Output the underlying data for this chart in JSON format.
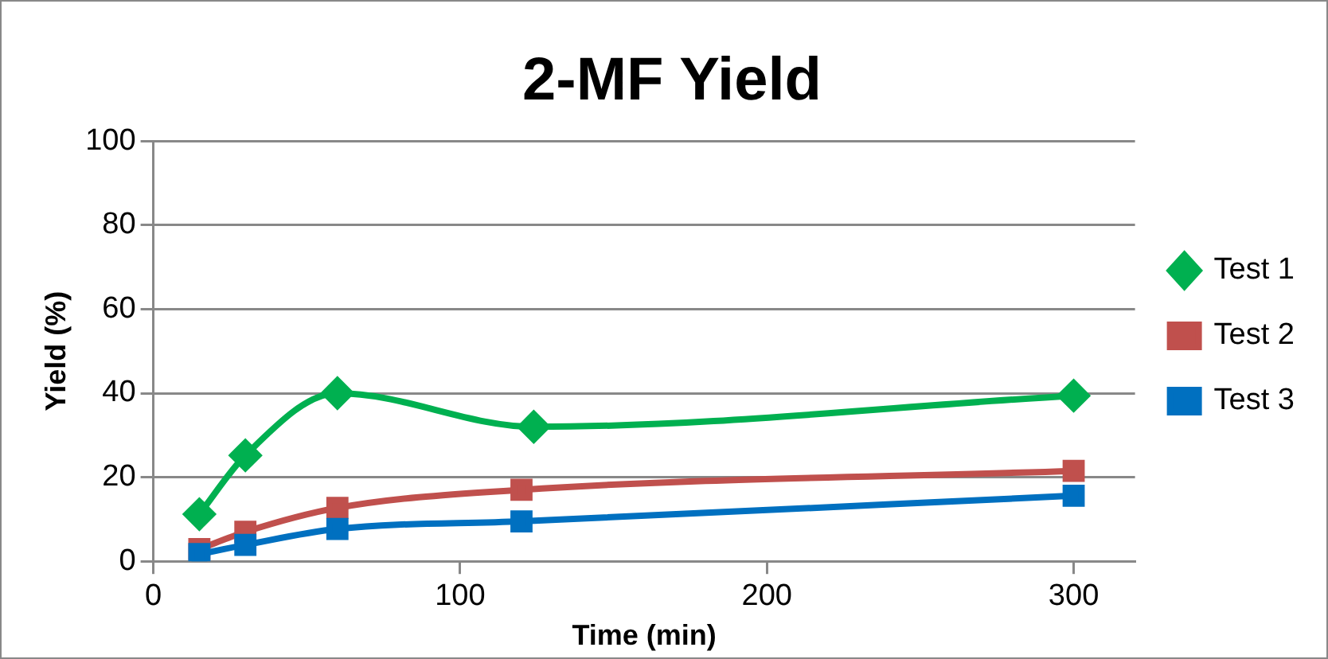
{
  "chart_data": {
    "type": "line",
    "title": "2-MF Yield",
    "xlabel": "Time (min)",
    "ylabel": "Yield (%)",
    "xlim": [
      0,
      320
    ],
    "xticks": [
      0,
      100,
      200,
      300
    ],
    "ylim": [
      0,
      100
    ],
    "yticks": [
      0,
      20,
      40,
      60,
      80,
      100
    ],
    "grid": "y",
    "legend": "right",
    "line_style": "solid",
    "series": [
      {
        "name": "Test 1",
        "color": "#00b050",
        "marker": "diamond",
        "x": [
          15,
          30,
          60,
          124,
          300
        ],
        "values": [
          11.2,
          25.2,
          40,
          32,
          39.4
        ]
      },
      {
        "name": "Test 2",
        "color": "#c0504d",
        "marker": "square",
        "x": [
          15,
          30,
          60,
          120,
          300
        ],
        "values": [
          2.9,
          7,
          12.7,
          17,
          21.5
        ]
      },
      {
        "name": "Test 3",
        "color": "#0070c0",
        "marker": "square",
        "x": [
          15,
          30,
          60,
          120,
          300
        ],
        "values": [
          1.7,
          3.9,
          7.7,
          9.5,
          15.6
        ]
      }
    ]
  }
}
